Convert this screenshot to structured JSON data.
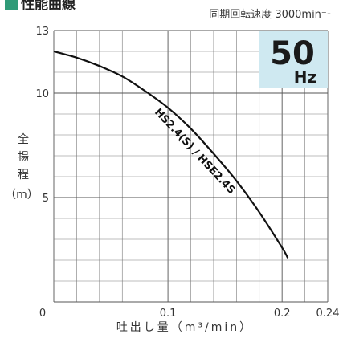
{
  "title": "性能曲線",
  "speed_label": "同期回転速度 3000min⁻¹",
  "freq_badge": {
    "value": "50",
    "unit": "Hz",
    "bg_color": "#cfe9f1"
  },
  "accent_color": "#2f9b78",
  "chart_data": {
    "type": "line",
    "xlabel": "吐出し量（m³/min）",
    "ylabel_chars": [
      "全",
      "揚",
      "程",
      "（m）"
    ],
    "xlim": [
      0,
      0.24
    ],
    "ylim": [
      0,
      13
    ],
    "x_ticks": [
      "0",
      "0.1",
      "0.2",
      "0.24"
    ],
    "y_ticks": [
      "5",
      "10",
      "13"
    ],
    "grid": true,
    "series": [
      {
        "name": "HS2.4(S) / HSE2.4S",
        "color": "#111111",
        "x": [
          0,
          0.02,
          0.04,
          0.06,
          0.08,
          0.1,
          0.12,
          0.14,
          0.16,
          0.18,
          0.2,
          0.205
        ],
        "y": [
          12.0,
          11.7,
          11.3,
          10.8,
          10.1,
          9.3,
          8.3,
          7.1,
          5.8,
          4.3,
          2.6,
          2.1
        ]
      }
    ]
  }
}
